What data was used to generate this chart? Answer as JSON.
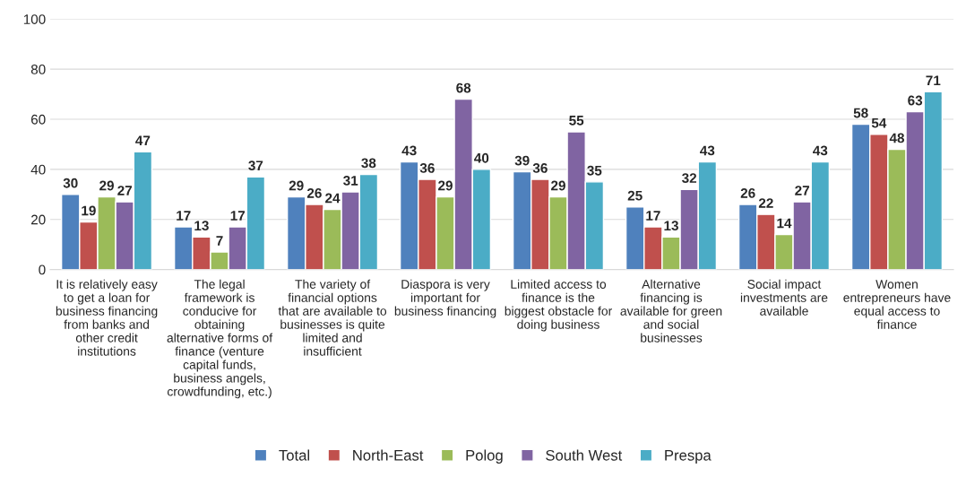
{
  "chart_data": {
    "type": "bar",
    "categories": [
      "It is relatively easy\nto get a loan for\nbusiness financing\nfrom banks and\nother credit\ninstitutions",
      "The legal\nframework is\nconducive for\nobtaining\nalternative forms of\nfinance (venture\ncapital funds,\nbusiness angels,\ncrowdfunding, etc.)",
      "The variety of\nfinancial options\nthat are available to\nbusinesses is quite\nlimited and\ninsufficient",
      "Diaspora is very\nimportant for\nbusiness financing",
      "Limited access to\nfinance is the\nbiggest obstacle for\ndoing business",
      "Alternative\nfinancing is\navailable for green\nand social\nbusinesses",
      "Social impact\ninvestments are\navailable",
      "Women\nentrepreneurs have\nequal access to\nfinance"
    ],
    "series": [
      {
        "name": "Total",
        "color": "#4f81bd",
        "values": [
          30,
          17,
          29,
          43,
          39,
          25,
          26,
          58
        ]
      },
      {
        "name": "North-East",
        "color": "#c0504d",
        "values": [
          19,
          13,
          26,
          36,
          36,
          17,
          22,
          54
        ]
      },
      {
        "name": "Polog",
        "color": "#9bbb59",
        "values": [
          29,
          7,
          24,
          29,
          29,
          13,
          14,
          48
        ]
      },
      {
        "name": "South West",
        "color": "#8064a2",
        "values": [
          27,
          17,
          31,
          68,
          55,
          32,
          27,
          63
        ]
      },
      {
        "name": "Prespa",
        "color": "#4bacc6",
        "values": [
          47,
          37,
          38,
          40,
          35,
          43,
          43,
          71
        ]
      }
    ],
    "ylim": [
      0,
      100
    ],
    "yticks": [
      0,
      20,
      40,
      60,
      80,
      100
    ],
    "grid": "y",
    "legend": "bottom",
    "data_labels": true
  }
}
